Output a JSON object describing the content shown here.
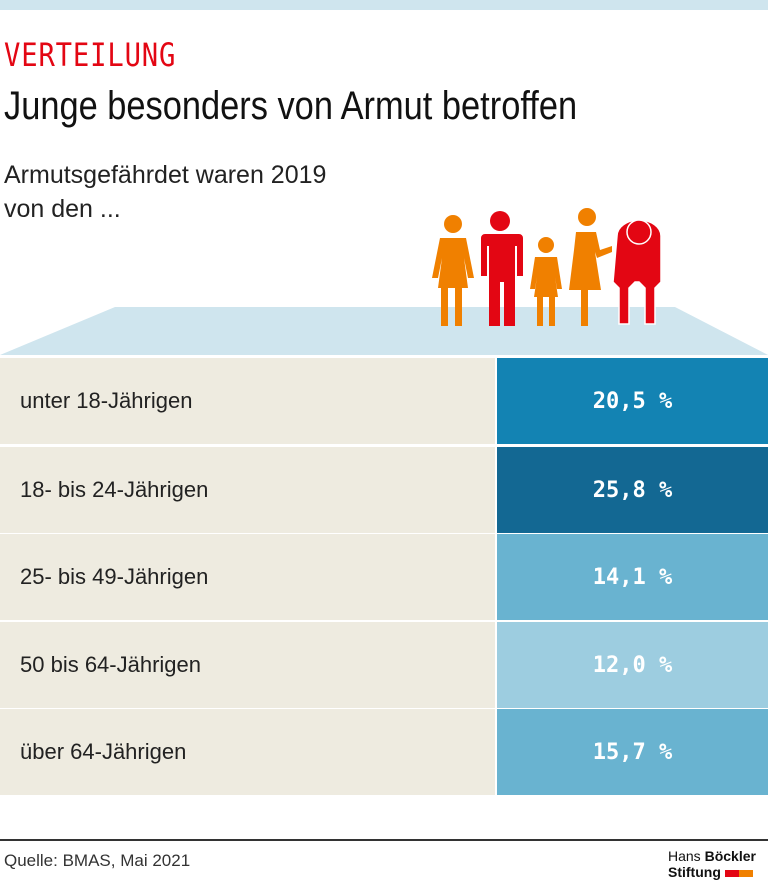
{
  "kicker": "VERTEILUNG",
  "title": "Junge besonders von Armut betroffen",
  "subtitle_line1": "Armutsgefährdet waren 2019",
  "subtitle_line2": "von den ...",
  "chart_data": {
    "type": "table",
    "categories": [
      "unter 18-Jährigen",
      "18- bis 24-Jährigen",
      "25- bis 49-Jährigen",
      "50 bis 64-Jährigen",
      "über 64-Jährigen"
    ],
    "values": [
      20.5,
      25.8,
      14.1,
      12.0,
      15.7
    ],
    "labels": [
      "20,5 %",
      "25,8 %",
      "14,1 %",
      "12,0 %",
      "15,7 %"
    ],
    "colors": [
      "#1383b3",
      "#136893",
      "#69b3d0",
      "#9dcde0",
      "#69b3d0"
    ]
  },
  "source": "Quelle: BMAS, Mai 2021",
  "logo": {
    "line1a": "Hans",
    "line1b": "Böckler",
    "line2": "Stiftung"
  },
  "colors": {
    "accent": "#e30613",
    "orange": "#f08000",
    "platform": "#cfe5ee",
    "label_bg": "#eeebe0"
  }
}
